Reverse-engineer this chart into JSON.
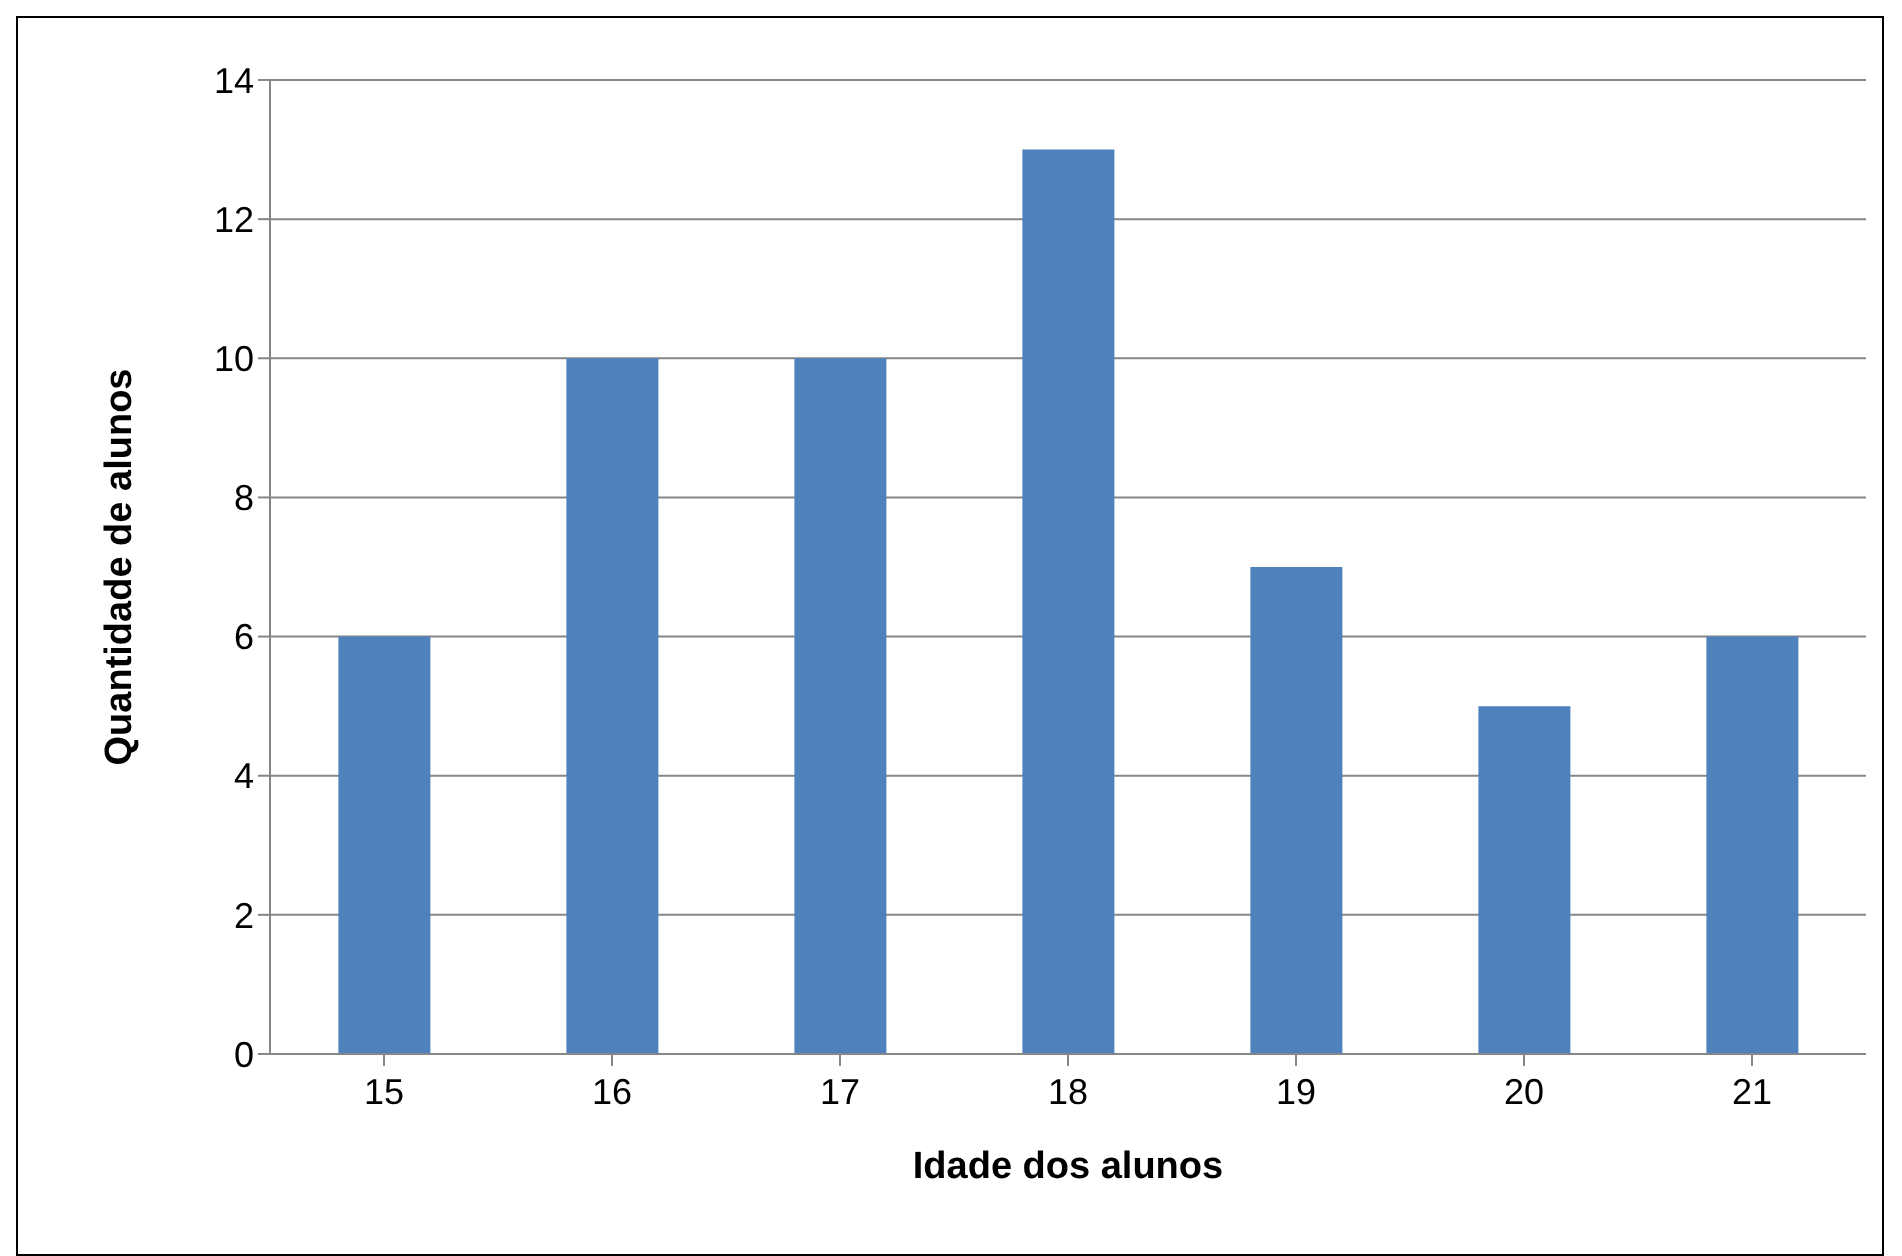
{
  "chart_data": {
    "type": "bar",
    "xlabel": "Idade dos alunos",
    "ylabel": "Quantidade de alunos",
    "categories": [
      "15",
      "16",
      "17",
      "18",
      "19",
      "20",
      "21"
    ],
    "values": [
      6,
      10,
      10,
      13,
      7,
      5,
      6
    ],
    "color": "#4f81bd",
    "ylim": [
      0,
      14
    ],
    "yticks": [
      0,
      2,
      4,
      6,
      8,
      10,
      12,
      14
    ],
    "grid": "y"
  }
}
